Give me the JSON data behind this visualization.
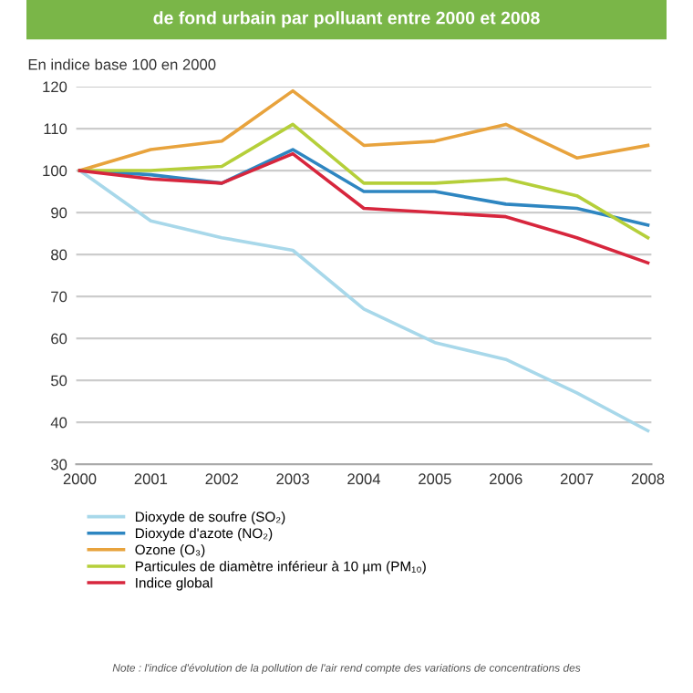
{
  "chart_data": {
    "type": "line",
    "title": "de fond urbain par polluant entre 2000 et 2008",
    "ylabel": "En indice base 100 en 2000",
    "categories": [
      "2000",
      "2001",
      "2002",
      "2003",
      "2004",
      "2005",
      "2006",
      "2007",
      "2008"
    ],
    "series": [
      {
        "name": "Dioxyde de soufre (SO₂)",
        "color": "#a8d8ea",
        "values": [
          100,
          88,
          84,
          81,
          67,
          59,
          55,
          47,
          38
        ]
      },
      {
        "name": "Dioxyde d'azote (NO₂)",
        "color": "#2e86c1",
        "values": [
          100,
          99,
          97,
          105,
          95,
          95,
          92,
          91,
          87
        ]
      },
      {
        "name": "Ozone (O₃)",
        "color": "#e8a33d",
        "values": [
          100,
          105,
          107,
          119,
          106,
          107,
          111,
          103,
          106
        ]
      },
      {
        "name": "Particules de diamètre inférieur à 10 µm (PM₁₀)",
        "color": "#b5cf3a",
        "values": [
          100,
          100,
          101,
          111,
          97,
          97,
          98,
          94,
          84
        ]
      },
      {
        "name": "Indice global",
        "color": "#d7263d",
        "values": [
          100,
          98,
          97,
          104,
          91,
          90,
          89,
          84,
          78
        ]
      }
    ],
    "ylim": [
      30,
      120
    ],
    "yticks": [
      30,
      40,
      50,
      60,
      70,
      80,
      90,
      100,
      110,
      120
    ],
    "grid": "y",
    "legend": "bottom",
    "marker": "none",
    "line_style": "solid",
    "annotations": [
      "Note : l'indice d'évolution de la pollution de l'air rend compte des variations de concentrations des"
    ]
  }
}
